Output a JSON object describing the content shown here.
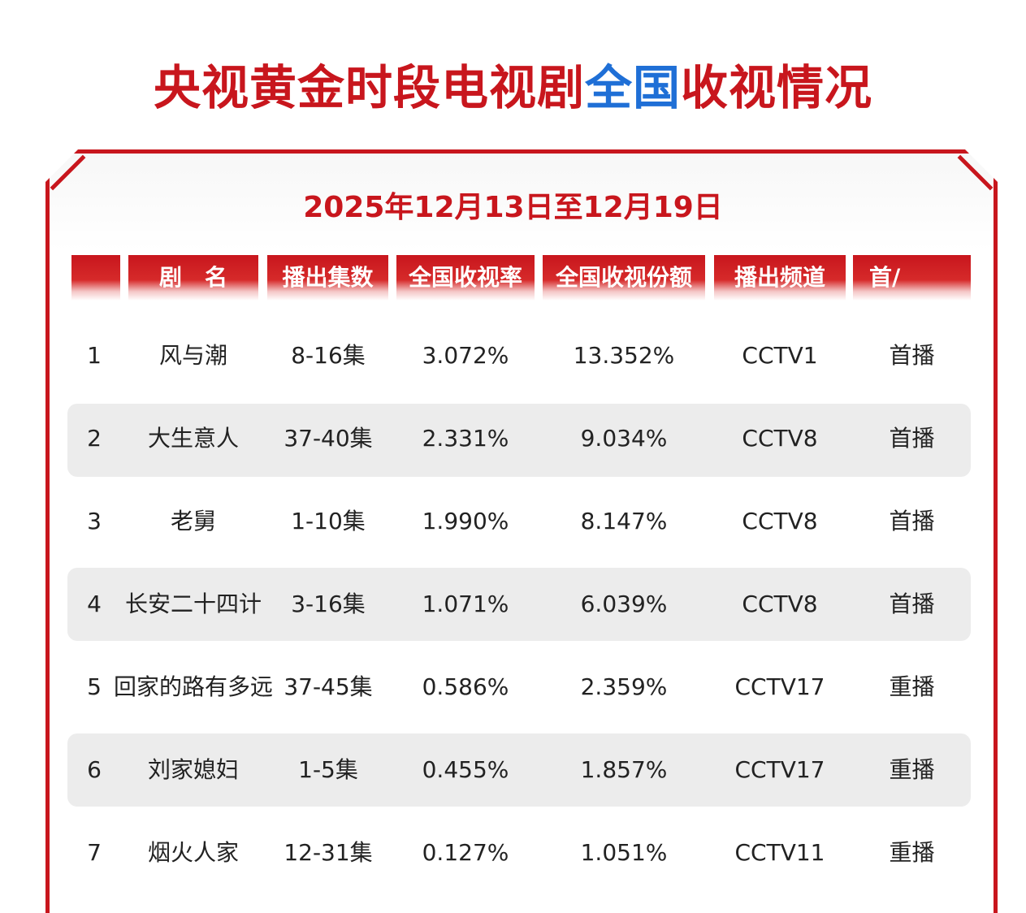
{
  "title": {
    "part1": "央视黄金时段电视剧",
    "part2": "全国",
    "part3": "收视情况"
  },
  "date_range": "2025年12月13日至12月19日",
  "columns": [
    "",
    "剧　名",
    "播出集数",
    "全国收视率",
    "全国收视份额",
    "播出频道",
    "首/"
  ],
  "rows": [
    {
      "rank": "1",
      "name": "风与潮",
      "episodes": "8-16集",
      "rating": "3.072%",
      "share": "13.352%",
      "channel": "CCTV1",
      "type": "首播"
    },
    {
      "rank": "2",
      "name": "大生意人",
      "episodes": "37-40集",
      "rating": "2.331%",
      "share": "9.034%",
      "channel": "CCTV8",
      "type": "首播"
    },
    {
      "rank": "3",
      "name": "老舅",
      "episodes": "1-10集",
      "rating": "1.990%",
      "share": "8.147%",
      "channel": "CCTV8",
      "type": "首播"
    },
    {
      "rank": "4",
      "name": "长安二十四计",
      "episodes": "3-16集",
      "rating": "1.071%",
      "share": "6.039%",
      "channel": "CCTV8",
      "type": "首播"
    },
    {
      "rank": "5",
      "name": "回家的路有多远",
      "episodes": "37-45集",
      "rating": "0.586%",
      "share": "2.359%",
      "channel": "CCTV17",
      "type": "重播"
    },
    {
      "rank": "6",
      "name": "刘家媳妇",
      "episodes": "1-5集",
      "rating": "0.455%",
      "share": "1.857%",
      "channel": "CCTV17",
      "type": "重播"
    },
    {
      "rank": "7",
      "name": "烟火人家",
      "episodes": "12-31集",
      "rating": "0.127%",
      "share": "1.051%",
      "channel": "CCTV11",
      "type": "重播"
    }
  ],
  "colors": {
    "accent_red": "#c8161d",
    "accent_blue": "#1f6fd6",
    "band_gray": "#ececec"
  }
}
